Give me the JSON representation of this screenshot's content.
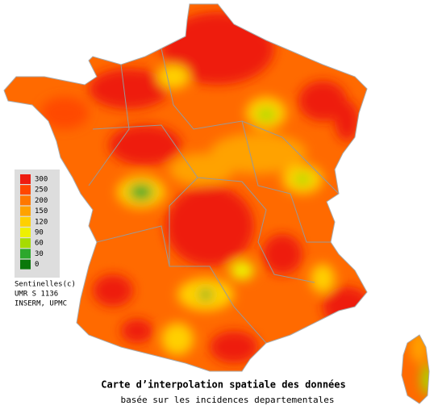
{
  "legend": {
    "items": [
      {
        "value": 300,
        "color": "#ee1c10"
      },
      {
        "value": 250,
        "color": "#ff4800"
      },
      {
        "value": 200,
        "color": "#ff7800"
      },
      {
        "value": 150,
        "color": "#ffa200"
      },
      {
        "value": 120,
        "color": "#ffd000"
      },
      {
        "value": 90,
        "color": "#eef000"
      },
      {
        "value": 60,
        "color": "#a6dc00"
      },
      {
        "value": 30,
        "color": "#2ca82c"
      },
      {
        "value": 0,
        "color": "#0a780a"
      }
    ]
  },
  "credits": [
    "Sentinelles(c)",
    "UMR S 1136",
    "INSERM, UPMC"
  ],
  "caption": {
    "title": "Carte d’interpolation spatiale des données",
    "subtitle": "basée sur les incidences departementales"
  }
}
